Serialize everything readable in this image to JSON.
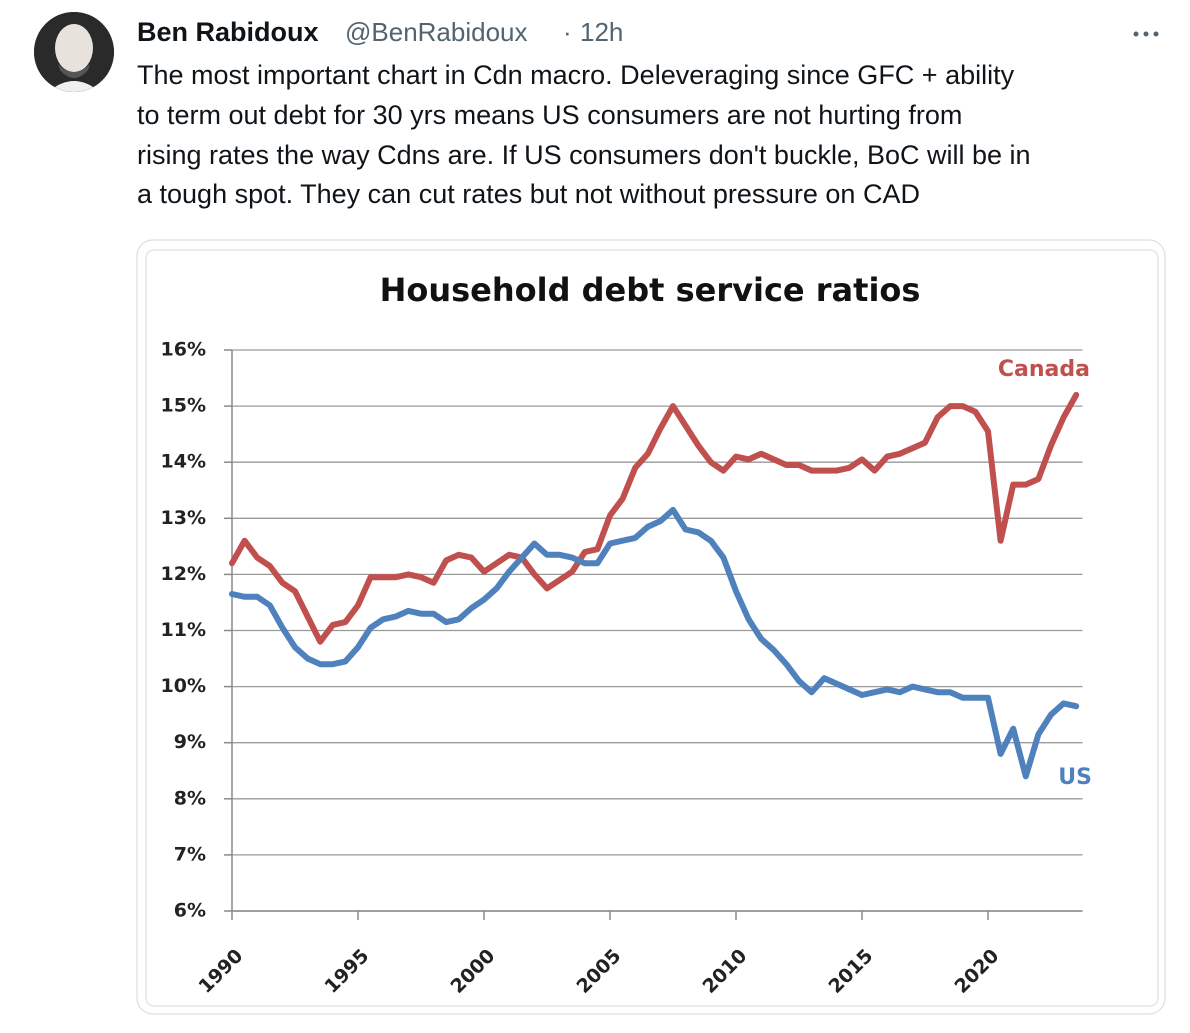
{
  "tweet": {
    "author": "Ben Rabidoux",
    "handle": "@BenRabidoux",
    "separator": "·",
    "time": "12h",
    "text_lines": [
      "The most important chart in Cdn macro. Deleveraging since GFC + ability",
      "to term out debt for 30 yrs means US consumers are not hurting from",
      "rising rates the way Cdns are. If US consumers don't buckle, BoC will be in",
      "a tough spot. They can cut rates but not without pressure on CAD"
    ]
  },
  "chart_data": {
    "type": "line",
    "title": "Household debt service ratios",
    "x": [
      1990,
      1990.5,
      1991,
      1991.5,
      1992,
      1992.5,
      1993,
      1993.5,
      1994,
      1994.5,
      1995,
      1995.5,
      1996,
      1996.5,
      1997,
      1997.5,
      1998,
      1998.5,
      1999,
      1999.5,
      2000,
      2000.5,
      2001,
      2001.5,
      2002,
      2002.5,
      2003,
      2003.5,
      2004,
      2004.5,
      2005,
      2005.5,
      2006,
      2006.5,
      2007,
      2007.5,
      2008,
      2008.5,
      2009,
      2009.5,
      2010,
      2010.5,
      2011,
      2011.5,
      2012,
      2012.5,
      2013,
      2013.5,
      2014,
      2014.5,
      2015,
      2015.5,
      2016,
      2016.5,
      2017,
      2017.5,
      2018,
      2018.5,
      2019,
      2019.5,
      2020,
      2020.5,
      2021,
      2021.5,
      2022,
      2022.5,
      2023,
      2023.5
    ],
    "series": [
      {
        "name": "Canada",
        "color": "#c0504d",
        "values": [
          12.2,
          12.6,
          12.3,
          12.15,
          11.85,
          11.7,
          11.25,
          10.8,
          11.1,
          11.15,
          11.45,
          11.95,
          11.95,
          11.95,
          12.0,
          11.95,
          11.85,
          12.25,
          12.35,
          12.3,
          12.05,
          12.2,
          12.35,
          12.3,
          12.0,
          11.75,
          11.9,
          12.05,
          12.4,
          12.45,
          13.05,
          13.35,
          13.9,
          14.15,
          14.6,
          15.0,
          14.65,
          14.3,
          14.0,
          13.85,
          14.1,
          14.05,
          14.15,
          14.05,
          13.95,
          13.95,
          13.85,
          13.85,
          13.85,
          13.9,
          14.05,
          13.85,
          14.1,
          14.15,
          14.25,
          14.35,
          14.8,
          15.0,
          15.0,
          14.9,
          14.55,
          12.6,
          13.6,
          13.6,
          13.7,
          14.3,
          14.8,
          15.2
        ]
      },
      {
        "name": "US",
        "color": "#4f81bd",
        "values": [
          11.65,
          11.6,
          11.6,
          11.45,
          11.05,
          10.7,
          10.5,
          10.4,
          10.4,
          10.45,
          10.7,
          11.05,
          11.2,
          11.25,
          11.35,
          11.3,
          11.3,
          11.15,
          11.2,
          11.4,
          11.55,
          11.75,
          12.05,
          12.3,
          12.55,
          12.35,
          12.35,
          12.3,
          12.2,
          12.2,
          12.55,
          12.6,
          12.65,
          12.85,
          12.95,
          13.15,
          12.8,
          12.75,
          12.6,
          12.3,
          11.7,
          11.2,
          10.85,
          10.65,
          10.4,
          10.1,
          9.9,
          10.15,
          10.05,
          9.95,
          9.85,
          9.9,
          9.95,
          9.9,
          10.0,
          9.95,
          9.9,
          9.9,
          9.8,
          9.8,
          9.8,
          8.8,
          9.25,
          8.4,
          9.15,
          9.5,
          9.7,
          9.65
        ]
      }
    ],
    "xlim": [
      1990,
      2023.75
    ],
    "xticks": [
      1990,
      1995,
      2000,
      2005,
      2010,
      2015,
      2020
    ],
    "ylim": [
      6,
      16
    ],
    "yticks": [
      {
        "value": 6,
        "label": "6%"
      },
      {
        "value": 7,
        "label": "7%"
      },
      {
        "value": 8,
        "label": "8%"
      },
      {
        "value": 9,
        "label": "9%"
      },
      {
        "value": 10,
        "label": "10%"
      },
      {
        "value": 11,
        "label": "11%"
      },
      {
        "value": 12,
        "label": "12%"
      },
      {
        "value": 13,
        "label": "13%"
      },
      {
        "value": 14,
        "label": "14%"
      },
      {
        "value": 15,
        "label": "15%"
      },
      {
        "value": 16,
        "label": "16%"
      }
    ],
    "grid": true
  }
}
